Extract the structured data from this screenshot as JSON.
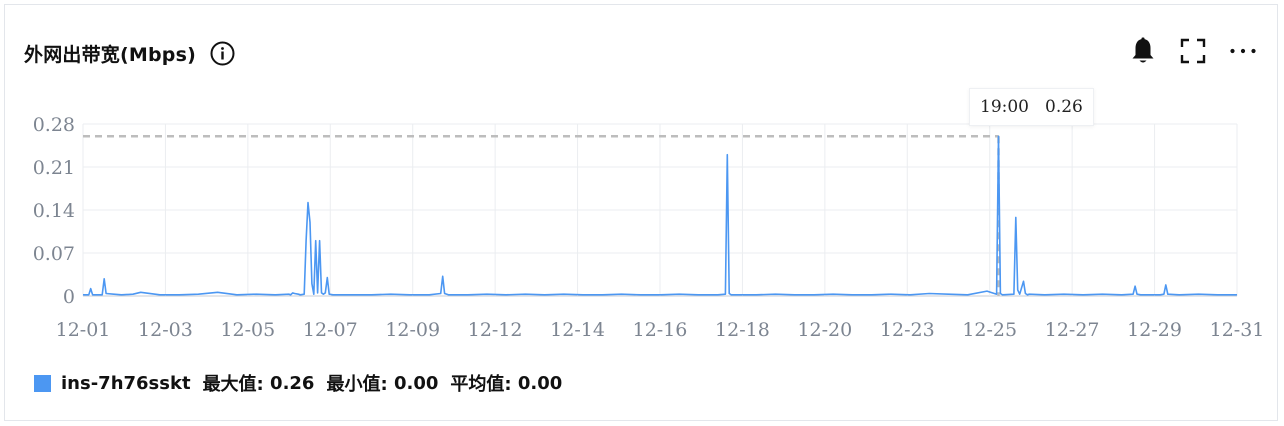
{
  "panel": {
    "title": "外网出带宽(Mbps)",
    "icons": [
      "info-circle-icon",
      "bell-icon",
      "fullscreen-icon",
      "more-icon"
    ]
  },
  "tooltip": {
    "time": "19:00",
    "value": "0.26"
  },
  "legend": {
    "series_name": "ins-7h76sskt",
    "max_label": "最大值:",
    "max_value": "0.26",
    "min_label": "最小值:",
    "min_value": "0.00",
    "avg_label": "平均值:",
    "avg_value": "0.00"
  },
  "colors": {
    "series": "#4c97f2",
    "grid": "#ebedf0",
    "axis_text": "#7d8591",
    "ref_line": "#bdbdbd"
  },
  "chart_data": {
    "type": "line",
    "title": "外网出带宽(Mbps)",
    "xlabel": "",
    "ylabel": "",
    "ylim": [
      0,
      0.28
    ],
    "y_ticks": [
      "0",
      "0.07",
      "0.14",
      "0.21",
      "0.28"
    ],
    "x_ticks": [
      "12-01",
      "12-03",
      "12-05",
      "12-07",
      "12-09",
      "12-12",
      "12-14",
      "12-16",
      "12-18",
      "12-20",
      "12-23",
      "12-25",
      "12-27",
      "12-29",
      "12-31"
    ],
    "x_range": [
      0,
      30
    ],
    "grid": true,
    "legend_position": "bottom-left",
    "reference_line": {
      "y": 0.26,
      "x": 23.8
    },
    "series": [
      {
        "name": "ins-7h76sskt",
        "x": [
          0,
          0.15,
          0.2,
          0.25,
          0.5,
          0.55,
          0.6,
          0.8,
          1.0,
          1.3,
          1.5,
          2.0,
          2.5,
          3.0,
          3.5,
          4.0,
          4.5,
          5.0,
          5.5,
          5.35,
          5.4,
          5.45,
          5.6,
          5.65,
          5.75,
          5.8,
          5.85,
          5.9,
          5.95,
          6.0,
          6.05,
          6.1,
          6.15,
          6.2,
          6.25,
          6.3,
          6.35,
          6.4,
          6.5,
          7.0,
          7.5,
          8.0,
          8.5,
          9.0,
          9.3,
          9.35,
          9.4,
          9.5,
          10.0,
          10.5,
          11.0,
          11.5,
          12.0,
          12.5,
          13.0,
          13.5,
          14.0,
          14.5,
          15.0,
          15.5,
          16.0,
          16.5,
          16.7,
          16.75,
          16.8,
          16.85,
          17.0,
          17.5,
          18.0,
          18.5,
          19.0,
          19.5,
          20.0,
          20.5,
          21.0,
          21.5,
          22.0,
          22.5,
          23.0,
          23.5,
          23.75,
          23.8,
          23.85,
          23.9,
          24.2,
          24.25,
          24.3,
          24.35,
          24.45,
          24.5,
          24.55,
          24.6,
          25.0,
          25.5,
          26.0,
          26.5,
          27.0,
          27.3,
          27.35,
          27.4,
          27.5,
          28.0,
          28.1,
          28.15,
          28.2,
          28.5,
          29.0,
          29.5,
          30.0
        ],
        "values": [
          0.002,
          0.002,
          0.012,
          0.002,
          0.002,
          0.028,
          0.004,
          0.003,
          0.002,
          0.003,
          0.006,
          0.002,
          0.002,
          0.003,
          0.006,
          0.002,
          0.003,
          0.002,
          0.004,
          0.003,
          0.002,
          0.005,
          0.003,
          0.002,
          0.003,
          0.09,
          0.152,
          0.12,
          0.02,
          0.003,
          0.09,
          0.005,
          0.09,
          0.005,
          0.003,
          0.005,
          0.03,
          0.003,
          0.002,
          0.002,
          0.002,
          0.003,
          0.002,
          0.002,
          0.004,
          0.032,
          0.004,
          0.002,
          0.002,
          0.003,
          0.002,
          0.003,
          0.002,
          0.003,
          0.002,
          0.002,
          0.003,
          0.002,
          0.002,
          0.003,
          0.002,
          0.002,
          0.003,
          0.23,
          0.004,
          0.002,
          0.002,
          0.002,
          0.003,
          0.002,
          0.002,
          0.003,
          0.002,
          0.002,
          0.003,
          0.002,
          0.004,
          0.003,
          0.002,
          0.008,
          0.003,
          0.26,
          0.004,
          0.002,
          0.003,
          0.128,
          0.01,
          0.003,
          0.024,
          0.004,
          0.002,
          0.003,
          0.002,
          0.003,
          0.002,
          0.003,
          0.002,
          0.003,
          0.016,
          0.003,
          0.002,
          0.002,
          0.003,
          0.018,
          0.003,
          0.002,
          0.003,
          0.002,
          0.002
        ]
      }
    ]
  }
}
